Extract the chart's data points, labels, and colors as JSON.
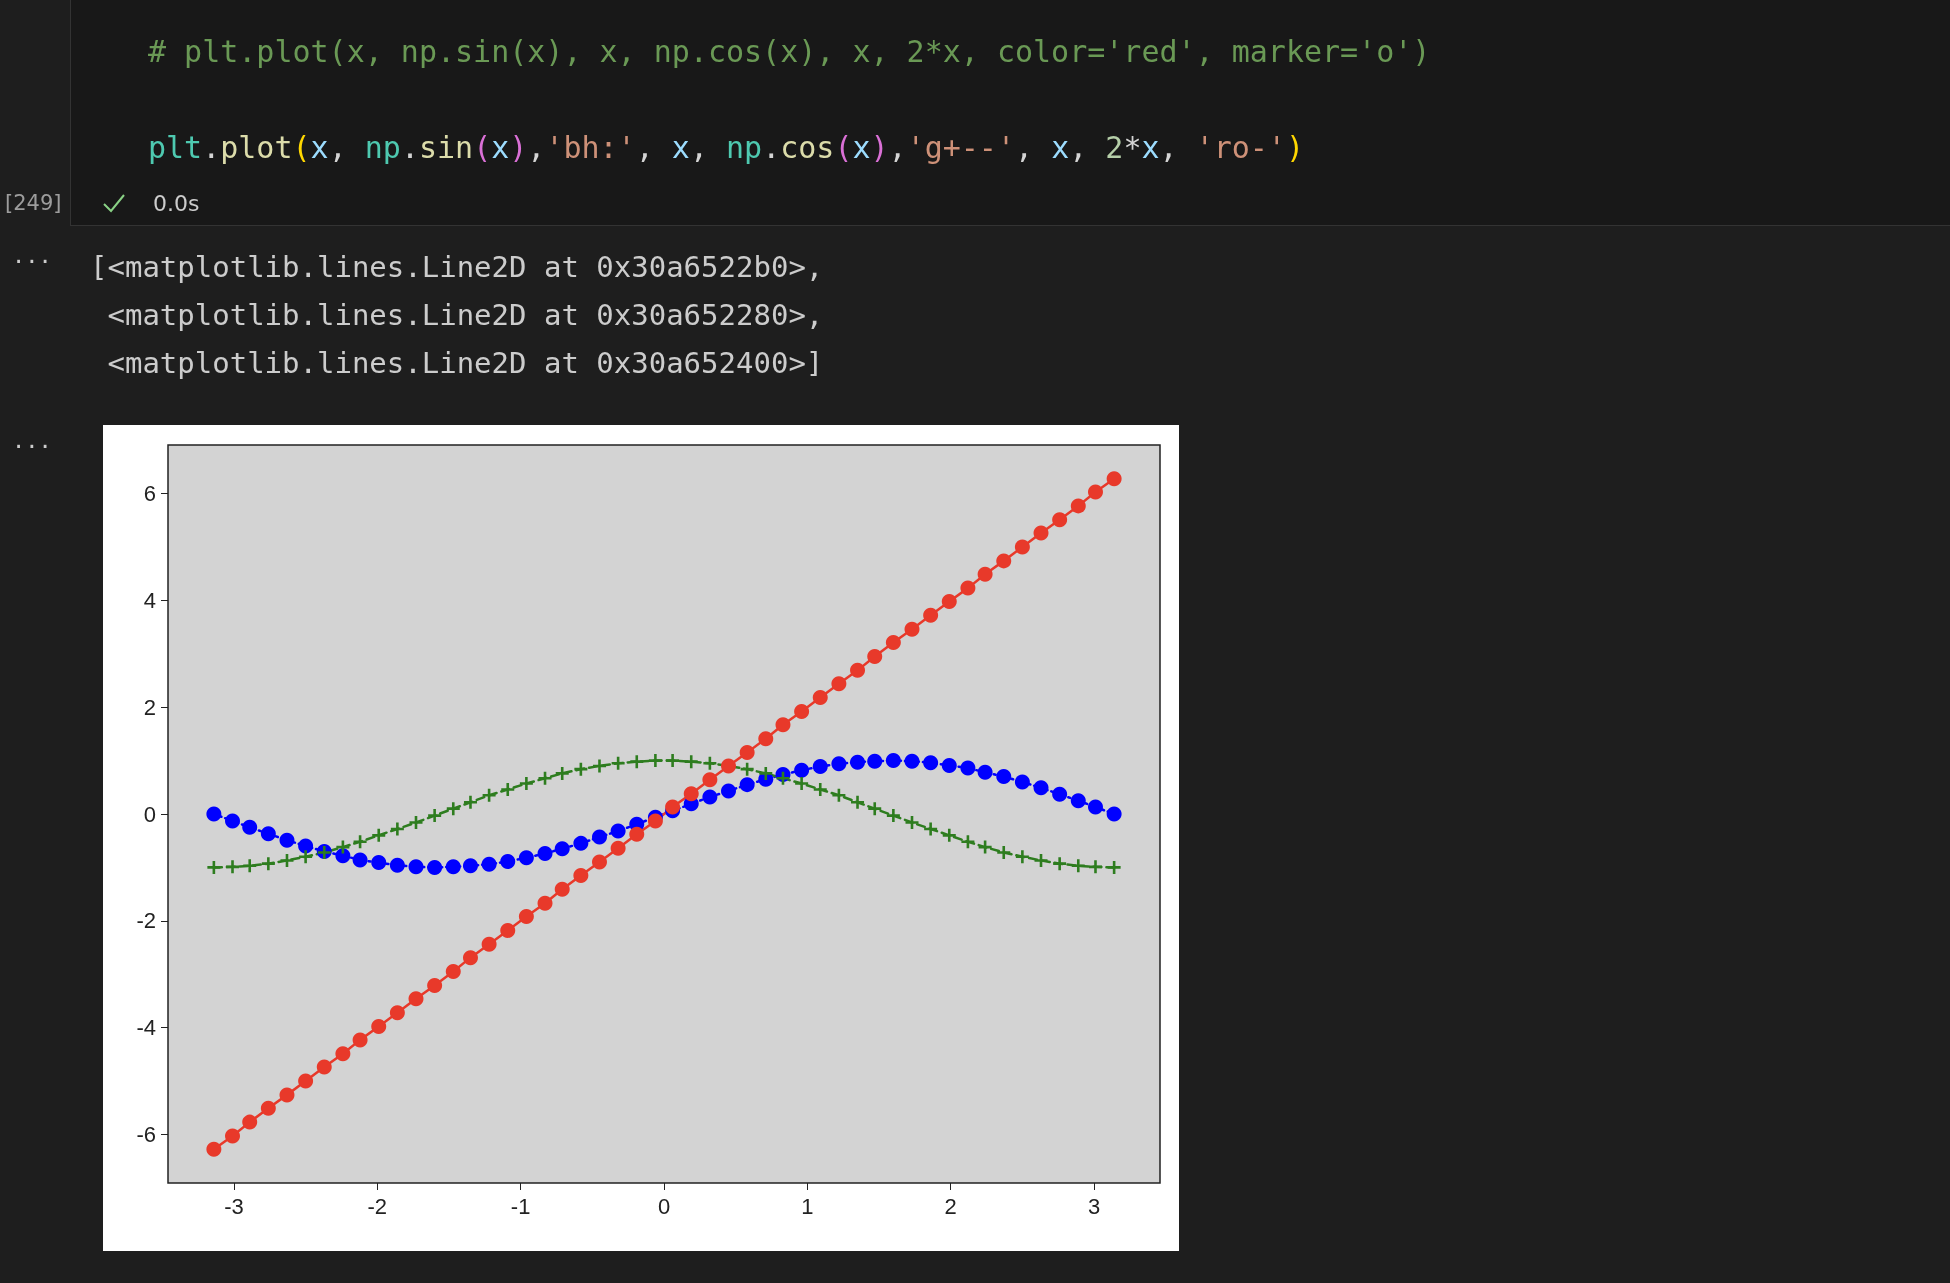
{
  "chart_data": {
    "type": "line",
    "annotations": [
      "# plt.plot(x, np.sin(x), x, np.cos(x), x, 2*x, color='red', marker='o')",
      "plt.plot(x, np.sin(x),'bh:', x, np.cos(x),'g+--', x, 2*x, 'ro-')",
      "[249]",
      "0.0s",
      "[<matplotlib.lines.Line2D at 0x30a6522b0>,",
      " <matplotlib.lines.Line2D at 0x30a652280>,",
      " <matplotlib.lines.Line2D at 0x30a652400>]",
      "...",
      "..."
    ],
    "x": [
      -3.14,
      -3.01,
      -2.89,
      -2.76,
      -2.63,
      -2.5,
      -2.37,
      -2.24,
      -2.12,
      -1.99,
      -1.86,
      -1.73,
      -1.6,
      -1.47,
      -1.35,
      -1.22,
      -1.09,
      -0.96,
      -0.83,
      -0.71,
      -0.58,
      -0.45,
      -0.32,
      -0.19,
      -0.06,
      0.06,
      0.19,
      0.32,
      0.45,
      0.58,
      0.71,
      0.83,
      0.96,
      1.09,
      1.22,
      1.35,
      1.47,
      1.6,
      1.73,
      1.86,
      1.99,
      2.12,
      2.24,
      2.37,
      2.5,
      2.63,
      2.76,
      2.89,
      3.01,
      3.14
    ],
    "series": [
      {
        "color": "#0000ff",
        "marker": "circle",
        "line_style": "dotted",
        "values": [
          0.0,
          -0.13,
          -0.25,
          -0.37,
          -0.49,
          -0.6,
          -0.7,
          -0.78,
          -0.86,
          -0.91,
          -0.96,
          -0.99,
          -1.0,
          -0.99,
          -0.97,
          -0.94,
          -0.89,
          -0.82,
          -0.74,
          -0.65,
          -0.55,
          -0.43,
          -0.32,
          -0.19,
          -0.06,
          0.06,
          0.19,
          0.32,
          0.43,
          0.55,
          0.65,
          0.74,
          0.82,
          0.89,
          0.94,
          0.97,
          0.99,
          1.0,
          0.99,
          0.96,
          0.91,
          0.86,
          0.78,
          0.7,
          0.6,
          0.49,
          0.37,
          0.25,
          0.13,
          0.0
        ]
      },
      {
        "color": "#2e7d1f",
        "marker": "cross",
        "line_style": "dashed",
        "values": [
          -1.0,
          -0.99,
          -0.97,
          -0.93,
          -0.87,
          -0.8,
          -0.72,
          -0.62,
          -0.52,
          -0.4,
          -0.28,
          -0.16,
          -0.03,
          0.1,
          0.22,
          0.35,
          0.46,
          0.57,
          0.67,
          0.76,
          0.84,
          0.9,
          0.95,
          0.98,
          1.0,
          1.0,
          0.98,
          0.95,
          0.9,
          0.84,
          0.76,
          0.67,
          0.57,
          0.46,
          0.35,
          0.22,
          0.1,
          -0.03,
          -0.16,
          -0.28,
          -0.4,
          -0.52,
          -0.62,
          -0.72,
          -0.8,
          -0.87,
          -0.93,
          -0.97,
          -0.99,
          -1.0
        ]
      },
      {
        "color": "#e8392a",
        "marker": "circle",
        "line_style": "solid",
        "values": [
          -6.28,
          -6.03,
          -5.77,
          -5.51,
          -5.26,
          -5.0,
          -4.74,
          -4.49,
          -4.23,
          -3.98,
          -3.72,
          -3.46,
          -3.21,
          -2.95,
          -2.69,
          -2.44,
          -2.18,
          -1.92,
          -1.67,
          -1.41,
          -1.15,
          -0.9,
          -0.64,
          -0.38,
          -0.13,
          0.13,
          0.38,
          0.64,
          0.9,
          1.15,
          1.41,
          1.67,
          1.92,
          2.18,
          2.44,
          2.69,
          2.95,
          3.21,
          3.46,
          3.72,
          3.98,
          4.23,
          4.49,
          4.74,
          5.0,
          5.26,
          5.51,
          5.77,
          6.03,
          6.28
        ]
      }
    ],
    "xlim": [
      -3.46,
      3.46
    ],
    "xticks": [
      -3,
      -2,
      -1,
      0,
      1,
      2,
      3
    ],
    "ylim": [
      -6.91,
      6.91
    ],
    "yticks": [
      -6,
      -4,
      -2,
      0,
      2,
      4,
      6
    ],
    "grid": false
  }
}
